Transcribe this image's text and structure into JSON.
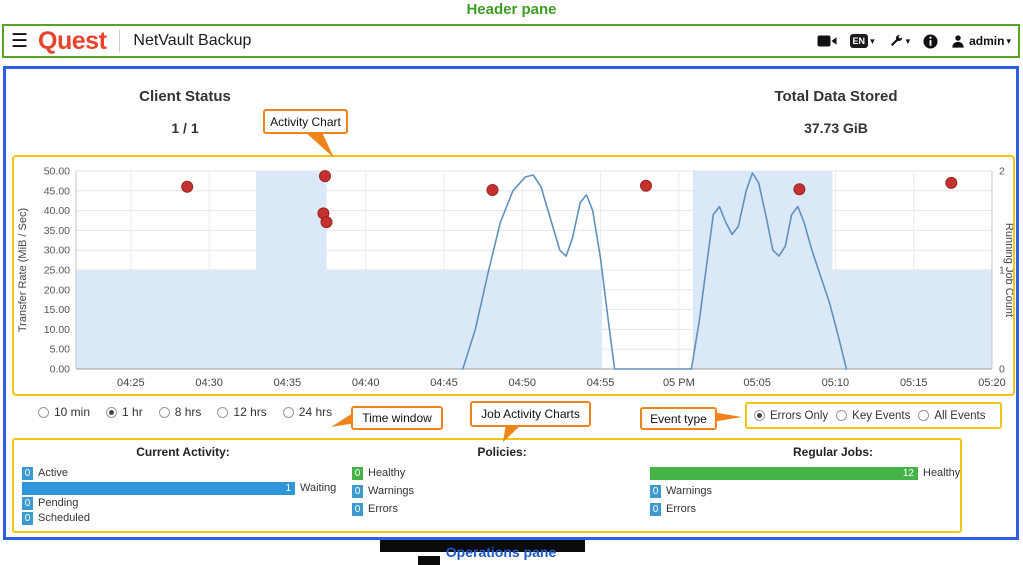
{
  "annotations": {
    "header_pane_label": "Header pane",
    "operations_pane_label": "Operations pane",
    "callouts": {
      "activity_chart": "Activity Chart",
      "time_window": "Time window",
      "job_activity_charts": "Job Activity Charts",
      "event_type": "Event type"
    }
  },
  "icons": {
    "hamburger": "☰",
    "caret_down": "▾"
  },
  "header": {
    "logo_text": "Quest",
    "app_title": "NetVault Backup",
    "language_label": "EN",
    "user_label": "admin"
  },
  "summary": {
    "client_status": {
      "label": "Client Status",
      "value": "1 / 1"
    },
    "total_data_stored": {
      "label": "Total Data Stored",
      "value": "37.73 GiB"
    }
  },
  "time_window": {
    "options": [
      {
        "label": "10 min",
        "selected": false
      },
      {
        "label": "1 hr",
        "selected": true
      },
      {
        "label": "8 hrs",
        "selected": false
      },
      {
        "label": "12 hrs",
        "selected": false
      },
      {
        "label": "24 hrs",
        "selected": false
      }
    ]
  },
  "event_type": {
    "options": [
      {
        "label": "Errors Only",
        "selected": true
      },
      {
        "label": "Key Events",
        "selected": false
      },
      {
        "label": "All Events",
        "selected": false
      }
    ]
  },
  "chart_data": {
    "type": "line",
    "x_unit_note": "minutes after 04:00 PM",
    "x_range": [
      21.5,
      80
    ],
    "x_ticks": [
      {
        "t": 25,
        "label": "04:25"
      },
      {
        "t": 30,
        "label": "04:30"
      },
      {
        "t": 35,
        "label": "04:35"
      },
      {
        "t": 40,
        "label": "04:40"
      },
      {
        "t": 45,
        "label": "04:45"
      },
      {
        "t": 50,
        "label": "04:50"
      },
      {
        "t": 55,
        "label": "04:55"
      },
      {
        "t": 60,
        "label": "05 PM"
      },
      {
        "t": 65,
        "label": "05:05"
      },
      {
        "t": 70,
        "label": "05:10"
      },
      {
        "t": 75,
        "label": "05:15"
      },
      {
        "t": 80,
        "label": "05:20"
      }
    ],
    "y_left": {
      "label": "Transfer Rate (MiB / Sec)",
      "min": 0,
      "max": 50,
      "tick_step": 5,
      "tick_labels": [
        "0.00",
        "5.00",
        "10.00",
        "15.00",
        "20.00",
        "25.00",
        "30.00",
        "35.00",
        "40.00",
        "45.00",
        "50.00"
      ]
    },
    "y_right": {
      "label": "Running Job Count",
      "min": 0,
      "max": 2,
      "tick_step": 1,
      "tick_labels": [
        "0",
        "1",
        "2"
      ]
    },
    "running_job_area": {
      "name": "Running Job Count",
      "axis": "right",
      "color": "#dbe8f8",
      "segments": [
        [
          21.5,
          33,
          1
        ],
        [
          33,
          37.5,
          2
        ],
        [
          37.5,
          55.1,
          1
        ],
        [
          55.1,
          60.9,
          0
        ],
        [
          60.9,
          69.8,
          2
        ],
        [
          69.8,
          80,
          1
        ]
      ]
    },
    "transfer_line": {
      "name": "Transfer Rate",
      "axis": "left",
      "color": "#6091bd",
      "points": [
        [
          46.2,
          0
        ],
        [
          47,
          10
        ],
        [
          47.8,
          24
        ],
        [
          48.6,
          37
        ],
        [
          49.4,
          45
        ],
        [
          50.2,
          48.5
        ],
        [
          50.7,
          49
        ],
        [
          51.2,
          46
        ],
        [
          51.8,
          38
        ],
        [
          52.4,
          30
        ],
        [
          52.8,
          28.5
        ],
        [
          53.2,
          33
        ],
        [
          53.7,
          42
        ],
        [
          54.1,
          44
        ],
        [
          54.5,
          40
        ],
        [
          55,
          28
        ],
        [
          55.5,
          12
        ],
        [
          55.9,
          0
        ],
        [
          60.8,
          0
        ],
        [
          61.3,
          12
        ],
        [
          61.8,
          27
        ],
        [
          62.2,
          39
        ],
        [
          62.6,
          41
        ],
        [
          63,
          37
        ],
        [
          63.4,
          34
        ],
        [
          63.8,
          36
        ],
        [
          64.3,
          45
        ],
        [
          64.7,
          49.5
        ],
        [
          65.1,
          47
        ],
        [
          65.6,
          38
        ],
        [
          66,
          30
        ],
        [
          66.4,
          28.5
        ],
        [
          66.8,
          31
        ],
        [
          67.2,
          39
        ],
        [
          67.6,
          41
        ],
        [
          68,
          37
        ],
        [
          68.5,
          30
        ],
        [
          69,
          24
        ],
        [
          69.6,
          17
        ],
        [
          70.2,
          8
        ],
        [
          70.7,
          0
        ]
      ]
    },
    "error_events": {
      "name": "Errors",
      "axis": "left",
      "color": "#c53030",
      "points": [
        [
          28.6,
          46
        ],
        [
          37.4,
          48.7
        ],
        [
          37.3,
          39.3
        ],
        [
          37.5,
          37.1
        ],
        [
          48.1,
          45.2
        ],
        [
          57.9,
          46.3
        ],
        [
          67.7,
          45.4
        ],
        [
          77.4,
          47
        ]
      ]
    }
  },
  "operations": {
    "current_activity": {
      "title": "Current Activity:",
      "rows": [
        {
          "count": "0",
          "label": "Active",
          "badge": "blue"
        },
        {
          "count": "1",
          "label": "Waiting",
          "bar": "blue"
        },
        {
          "count": "0",
          "label": "Pending",
          "badge": "blue"
        },
        {
          "count": "0",
          "label": "Scheduled",
          "badge": "blue"
        }
      ]
    },
    "policies": {
      "title": "Policies:",
      "rows": [
        {
          "count": "0",
          "label": "Healthy",
          "badge": "green"
        },
        {
          "count": "0",
          "label": "Warnings",
          "badge": "blue"
        },
        {
          "count": "0",
          "label": "Errors",
          "badge": "blue"
        }
      ]
    },
    "regular_jobs": {
      "title": "Regular Jobs:",
      "rows": [
        {
          "count": "12",
          "label": "Healthy",
          "bar": "green"
        },
        {
          "count": "0",
          "label": "Warnings",
          "badge": "blue"
        },
        {
          "count": "0",
          "label": "Errors",
          "badge": "blue"
        }
      ]
    }
  }
}
